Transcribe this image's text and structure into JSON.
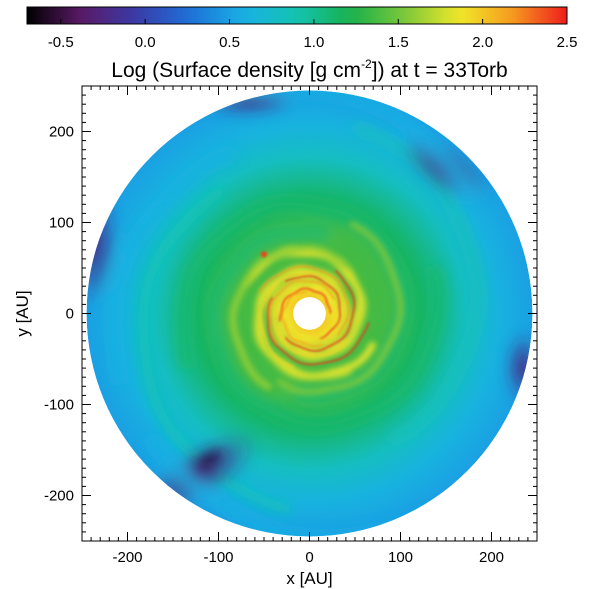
{
  "chart_data": {
    "type": "heatmap",
    "title_parts": [
      "Log (Surface density [g cm",
      "-2",
      "]) at t = 33Torb"
    ],
    "xlabel": "x [AU]",
    "ylabel": "y [AU]",
    "xlim": [
      -250,
      250
    ],
    "ylim": [
      -250,
      250
    ],
    "x_ticks": [
      -200,
      -100,
      0,
      100,
      200
    ],
    "y_ticks": [
      -200,
      -100,
      0,
      100,
      200
    ],
    "x_tick_labels": [
      "-200",
      "-100",
      "0",
      "100",
      "200"
    ],
    "y_tick_labels": [
      "-200",
      "-100",
      "0",
      "100",
      "200"
    ],
    "grid": false,
    "disk": {
      "inner_radius_au": 18,
      "outer_radius_au": 245
    },
    "colorbar": {
      "min": -0.7,
      "max": 2.5,
      "ticks": [
        -0.5,
        0.0,
        0.5,
        1.0,
        1.5,
        2.0,
        2.5
      ],
      "tick_labels": [
        "-0.5",
        "0.0",
        "0.5",
        "1.0",
        "1.5",
        "2.0",
        "2.5"
      ],
      "colors": [
        "#000000",
        "#5a1a66",
        "#3a3aa6",
        "#1e6fd8",
        "#19b0e6",
        "#13c4b0",
        "#18b04a",
        "#7cc83a",
        "#f0e82a",
        "#f59a1e",
        "#ee1c1c"
      ]
    },
    "features": [
      {
        "description": "high-density spiral arms",
        "log_density_range": [
          1.6,
          2.5
        ],
        "radius_range_au": [
          18,
          90
        ]
      },
      {
        "description": "intermediate density spiral band",
        "log_density_range": [
          1.0,
          1.6
        ],
        "radius_range_au": [
          60,
          190
        ]
      },
      {
        "description": "low-density outer disk",
        "log_density_range": [
          0.3,
          0.9
        ],
        "radius_range_au": [
          150,
          245
        ]
      },
      {
        "description": "lowest density region",
        "log_density_range": [
          -0.7,
          0.0
        ],
        "location": "x approx -110, y approx -160 AU"
      },
      {
        "description": "clump",
        "location": "x approx -50, y approx 65 AU"
      }
    ]
  }
}
